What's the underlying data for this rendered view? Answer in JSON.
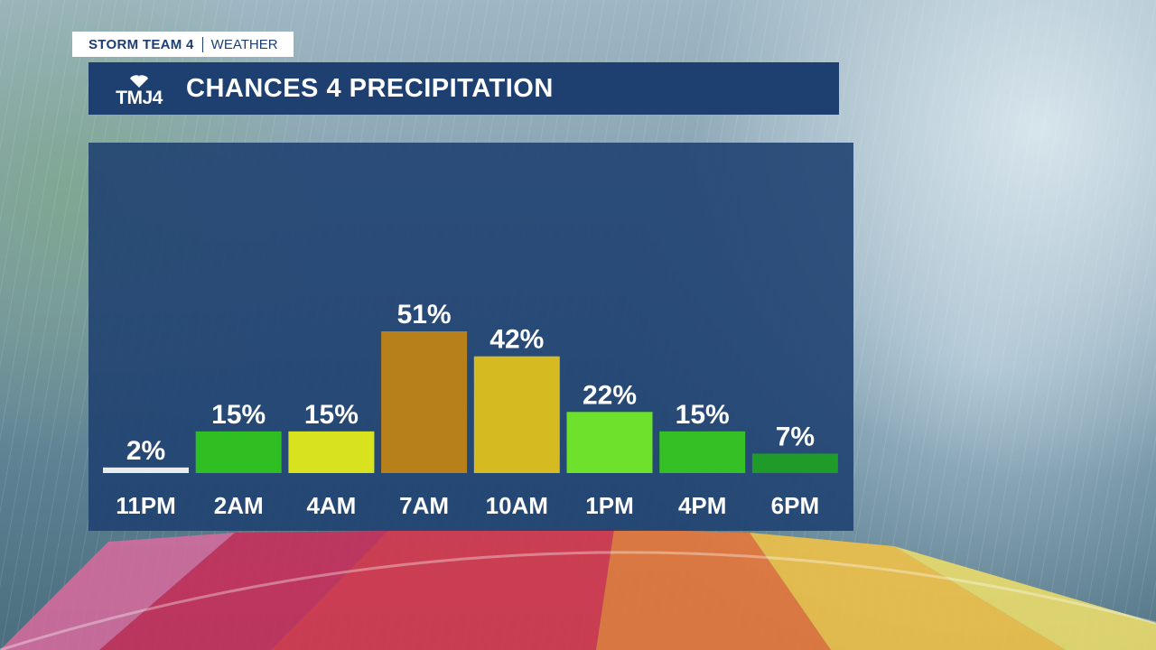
{
  "branding": {
    "station": "STORM TEAM 4",
    "section": "WEATHER",
    "logo_text": "TMJ4"
  },
  "title": "CHANCES 4 PRECIPITATION",
  "colors": {
    "panel": "#1e4070",
    "header_bar": "#1e4070",
    "lower_third_text": "#1d3e74"
  },
  "chart_data": {
    "type": "bar",
    "categories": [
      "11PM",
      "2AM",
      "4AM",
      "7AM",
      "10AM",
      "1PM",
      "4PM",
      "6PM"
    ],
    "values": [
      2,
      15,
      15,
      51,
      42,
      22,
      15,
      7
    ],
    "labels": [
      "2%",
      "15%",
      "15%",
      "51%",
      "42%",
      "22%",
      "15%",
      "7%"
    ],
    "bar_colors": [
      "#e8ecef",
      "#2fbf22",
      "#d8e21f",
      "#b8801b",
      "#d6ba22",
      "#6ee12c",
      "#35c025",
      "#1e9b28"
    ],
    "title": "CHANCES 4 PRECIPITATION",
    "xlabel": "",
    "ylabel": "",
    "grid": false,
    "legend": "none"
  }
}
